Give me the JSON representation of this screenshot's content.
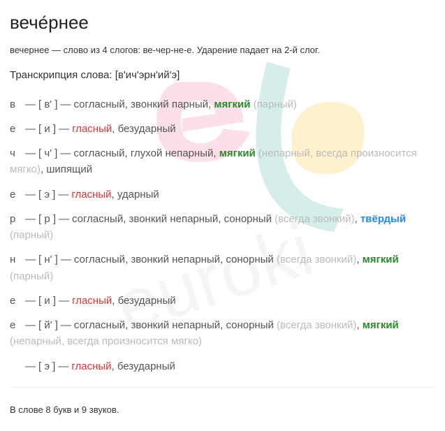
{
  "title": "вече́рнее",
  "subtitle": "вечернее — слово из 4 слогов: ве-чер-не-е. Ударение падает на 2-й слог.",
  "transcription_label": "Транскрипция слова: ",
  "transcription_value": "[в'ич'эрн'ий'э]",
  "footer": "В слове 8 букв и 9 звуков.",
  "rows": [
    {
      "letter": "в",
      "sound": "[ в' ]",
      "parts": [
        {
          "text": "согласный, звонкий парный, ",
          "cls": ""
        },
        {
          "text": "мягкий",
          "cls": "greenb"
        },
        {
          "text": " (парный)",
          "cls": "gray"
        }
      ]
    },
    {
      "letter": "е",
      "sound": "[ и ]",
      "parts": [
        {
          "text": "гласный",
          "cls": "red"
        },
        {
          "text": ", безударный",
          "cls": ""
        }
      ]
    },
    {
      "letter": "ч",
      "sound": "[ ч' ]",
      "parts": [
        {
          "text": "согласный, глухой непарный, ",
          "cls": ""
        },
        {
          "text": "мягкий",
          "cls": "greenb"
        },
        {
          "text": " (непарный, всегда произносится мягко)",
          "cls": "gray"
        },
        {
          "text": ", шипящий",
          "cls": ""
        }
      ]
    },
    {
      "letter": "е",
      "sound": "[ э ]",
      "parts": [
        {
          "text": "гласный",
          "cls": "red"
        },
        {
          "text": ", ударный",
          "cls": ""
        }
      ]
    },
    {
      "letter": "р",
      "sound": "[ р ]",
      "parts": [
        {
          "text": "согласный, звонкий непарный, сонорный ",
          "cls": ""
        },
        {
          "text": "(всегда звонкий)",
          "cls": "gray"
        },
        {
          "text": ", ",
          "cls": ""
        },
        {
          "text": "твёрдый",
          "cls": "blue"
        },
        {
          "text": " (парный)",
          "cls": "gray"
        }
      ]
    },
    {
      "letter": "н",
      "sound": "[ н' ]",
      "parts": [
        {
          "text": "согласный, звонкий непарный, сонорный ",
          "cls": ""
        },
        {
          "text": "(всегда звонкий)",
          "cls": "gray"
        },
        {
          "text": ", ",
          "cls": ""
        },
        {
          "text": "мягкий",
          "cls": "greenb"
        },
        {
          "text": " (парный)",
          "cls": "gray"
        }
      ]
    },
    {
      "letter": "е",
      "sound": "[ и ]",
      "parts": [
        {
          "text": "гласный",
          "cls": "red"
        },
        {
          "text": ", безударный",
          "cls": ""
        }
      ]
    },
    {
      "letter": "е",
      "sound": "[ й' ]",
      "parts": [
        {
          "text": "согласный, звонкий непарный, сонорный ",
          "cls": ""
        },
        {
          "text": "(всегда звонкий)",
          "cls": "gray"
        },
        {
          "text": ", ",
          "cls": ""
        },
        {
          "text": "мягкий",
          "cls": "greenb"
        },
        {
          "text": " (непарный, всегда произносится мягко)",
          "cls": "gray"
        }
      ]
    },
    {
      "letter": "",
      "sound": "[ э ]",
      "parts": [
        {
          "text": "гласный",
          "cls": "red"
        },
        {
          "text": ", безударный",
          "cls": ""
        }
      ]
    }
  ]
}
